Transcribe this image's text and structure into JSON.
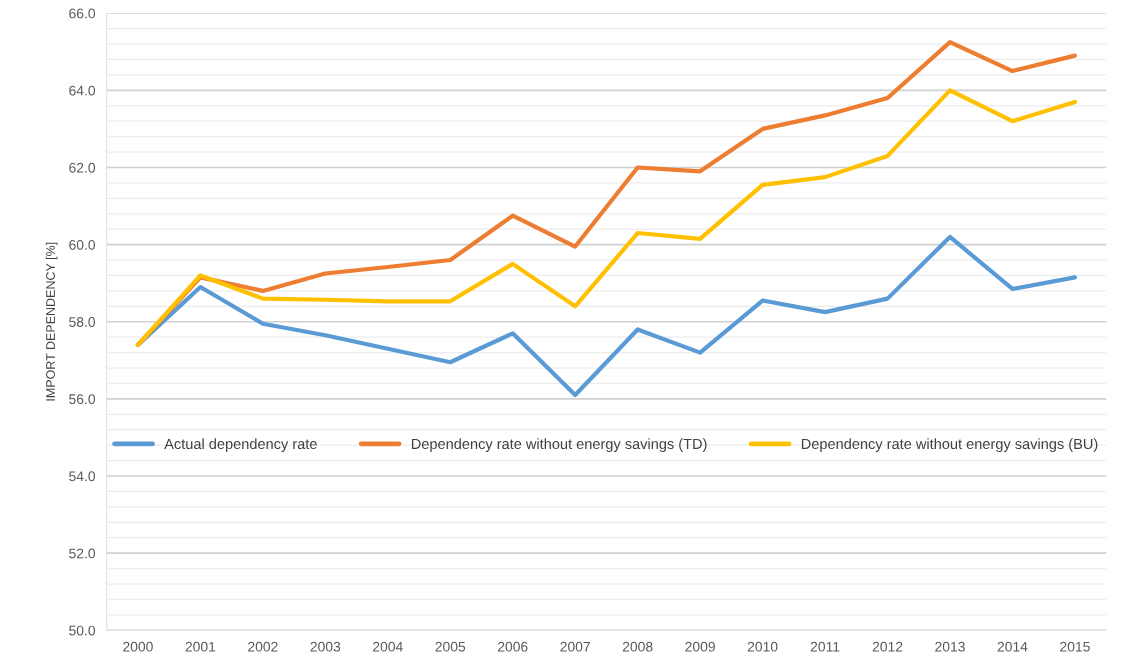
{
  "chart_data": {
    "type": "line",
    "ylabel": "IMPORT DEPENDENCY [%]",
    "categories": [
      "2000",
      "2001",
      "2002",
      "2003",
      "2004",
      "2005",
      "2006",
      "2007",
      "2008",
      "2009",
      "2010",
      "2011",
      "2012",
      "2013",
      "2014",
      "2015"
    ],
    "series": [
      {
        "name": "Actual dependency rate",
        "color": "#5b9bd5",
        "values": [
          57.4,
          58.9,
          57.95,
          57.65,
          57.3,
          56.95,
          57.7,
          56.1,
          57.8,
          57.2,
          58.55,
          58.25,
          58.6,
          60.2,
          58.85,
          59.15
        ]
      },
      {
        "name": "Dependency rate without energy savings (TD)",
        "color": "#ed7d31",
        "values": [
          57.4,
          59.15,
          58.8,
          59.25,
          59.42,
          59.6,
          60.75,
          59.95,
          62.0,
          61.9,
          63.0,
          63.35,
          63.8,
          65.25,
          64.5,
          64.9
        ]
      },
      {
        "name": "Dependency rate without energy savings (BU)",
        "color": "#ffc000",
        "values": [
          57.4,
          59.2,
          58.6,
          58.57,
          58.53,
          58.53,
          59.5,
          58.4,
          60.3,
          60.15,
          61.55,
          61.75,
          62.3,
          64.0,
          63.2,
          63.7
        ]
      }
    ],
    "ylim": [
      50,
      66
    ],
    "yticks": [
      {
        "value": 50,
        "label": "50.0"
      },
      {
        "value": 50.4,
        "label": null
      },
      {
        "value": 50.8,
        "label": null
      },
      {
        "value": 51.2,
        "label": null
      },
      {
        "value": 51.6,
        "label": null
      },
      {
        "value": 52,
        "label": "52.0"
      },
      {
        "value": 52.4,
        "label": null
      },
      {
        "value": 52.8,
        "label": null
      },
      {
        "value": 53.2,
        "label": null
      },
      {
        "value": 53.6,
        "label": null
      },
      {
        "value": 54,
        "label": "54.0"
      },
      {
        "value": 54.4,
        "label": null
      },
      {
        "value": 54.8,
        "label": null
      },
      {
        "value": 55.2,
        "label": null
      },
      {
        "value": 55.6,
        "label": null
      },
      {
        "value": 56,
        "label": "56.0"
      },
      {
        "value": 56.4,
        "label": null
      },
      {
        "value": 56.8,
        "label": null
      },
      {
        "value": 57.2,
        "label": null
      },
      {
        "value": 57.6,
        "label": null
      },
      {
        "value": 58,
        "label": "58.0"
      },
      {
        "value": 58.4,
        "label": null
      },
      {
        "value": 58.8,
        "label": null
      },
      {
        "value": 59.2,
        "label": null
      },
      {
        "value": 59.6,
        "label": null
      },
      {
        "value": 60,
        "label": "60.0"
      },
      {
        "value": 60.4,
        "label": null
      },
      {
        "value": 60.8,
        "label": null
      },
      {
        "value": 61.2,
        "label": null
      },
      {
        "value": 61.6,
        "label": null
      },
      {
        "value": 62,
        "label": "62.0"
      },
      {
        "value": 62.4,
        "label": null
      },
      {
        "value": 62.8,
        "label": null
      },
      {
        "value": 63.2,
        "label": null
      },
      {
        "value": 63.6,
        "label": null
      },
      {
        "value": 64,
        "label": "64.0"
      },
      {
        "value": 64.4,
        "label": null
      },
      {
        "value": 64.8,
        "label": null
      },
      {
        "value": 65.2,
        "label": null
      },
      {
        "value": 65.6,
        "label": null
      },
      {
        "value": 66,
        "label": "66.0"
      }
    ],
    "grid": "y",
    "legend": "bottom",
    "marker": "none",
    "line_style": "solid"
  }
}
